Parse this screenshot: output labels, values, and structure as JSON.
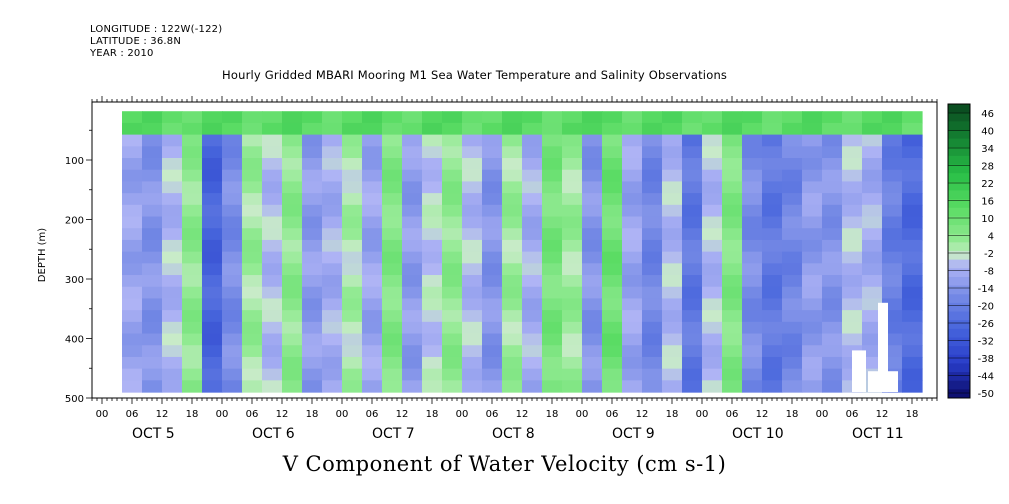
{
  "header": {
    "longitude": "LONGITUDE : 122W(-122)",
    "latitude": "LATITUDE : 36.8N",
    "year": "YEAR : 2010"
  },
  "chart_data": {
    "type": "heatmap",
    "title": "V Component of Water Velocity (cm s-1)",
    "subtitle": "Hourly Gridded MBARI Mooring M1 Sea Water Temperature and Salinity Observations",
    "ylabel": "DEPTH (m)",
    "y_ticks": [
      100,
      200,
      300,
      400,
      500
    ],
    "ylim": [
      500,
      0
    ],
    "x_hour_ticks": [
      "00",
      "06",
      "12",
      "18",
      "00",
      "06",
      "12",
      "18",
      "00",
      "06",
      "12",
      "18",
      "00",
      "06",
      "12",
      "18",
      "00",
      "06",
      "12",
      "18",
      "00",
      "06",
      "12",
      "18",
      "00",
      "06",
      "12",
      "18"
    ],
    "x_day_labels": [
      "OCT 5",
      "OCT 6",
      "OCT 7",
      "OCT 8",
      "OCT 9",
      "OCT 10",
      "OCT 11"
    ],
    "colorbar": {
      "labels": [
        "46",
        "40",
        "34",
        "28",
        "22",
        "16",
        "10",
        "4",
        "-2",
        "-8",
        "-14",
        "-20",
        "-26",
        "-32",
        "-38",
        "-44",
        "-50"
      ],
      "range": [
        -50,
        52
      ]
    },
    "data_extent": {
      "depth_min": 18,
      "depth_max": 490
    },
    "columns": [
      {
        "hour": 4,
        "v": -8
      },
      {
        "hour": 8,
        "v": -12
      },
      {
        "hour": 12,
        "v": -4
      },
      {
        "hour": 16,
        "v": 6
      },
      {
        "hour": 20,
        "v": -26
      },
      {
        "hour": 24,
        "v": -14
      },
      {
        "hour": 28,
        "v": 4
      },
      {
        "hour": 32,
        "v": -4
      },
      {
        "hour": 36,
        "v": 6
      },
      {
        "hour": 40,
        "v": -10
      },
      {
        "hour": 44,
        "v": -6
      },
      {
        "hour": 48,
        "v": 2
      },
      {
        "hour": 52,
        "v": -8
      },
      {
        "hour": 56,
        "v": 8
      },
      {
        "hour": 60,
        "v": -10
      },
      {
        "hour": 64,
        "v": -2
      },
      {
        "hour": 68,
        "v": 6
      },
      {
        "hour": 72,
        "v": -4
      },
      {
        "hour": 76,
        "v": -12
      },
      {
        "hour": 80,
        "v": 4
      },
      {
        "hour": 84,
        "v": -6
      },
      {
        "hour": 88,
        "v": 10
      },
      {
        "hour": 92,
        "v": 4
      },
      {
        "hour": 96,
        "v": -12
      },
      {
        "hour": 100,
        "v": 12
      },
      {
        "hour": 104,
        "v": -8
      },
      {
        "hour": 108,
        "v": -16
      },
      {
        "hour": 112,
        "v": -4
      },
      {
        "hour": 116,
        "v": -20
      },
      {
        "hour": 120,
        "v": -4
      },
      {
        "hour": 124,
        "v": 8
      },
      {
        "hour": 128,
        "v": -14
      },
      {
        "hour": 132,
        "v": -20
      },
      {
        "hour": 136,
        "v": -16
      },
      {
        "hour": 140,
        "v": -10
      },
      {
        "hour": 144,
        "v": -12
      },
      {
        "hour": 148,
        "v": -4
      },
      {
        "hour": 152,
        "v": -6
      },
      {
        "hour": 156,
        "v": -18
      },
      {
        "hour": 160,
        "v": -24
      }
    ]
  }
}
